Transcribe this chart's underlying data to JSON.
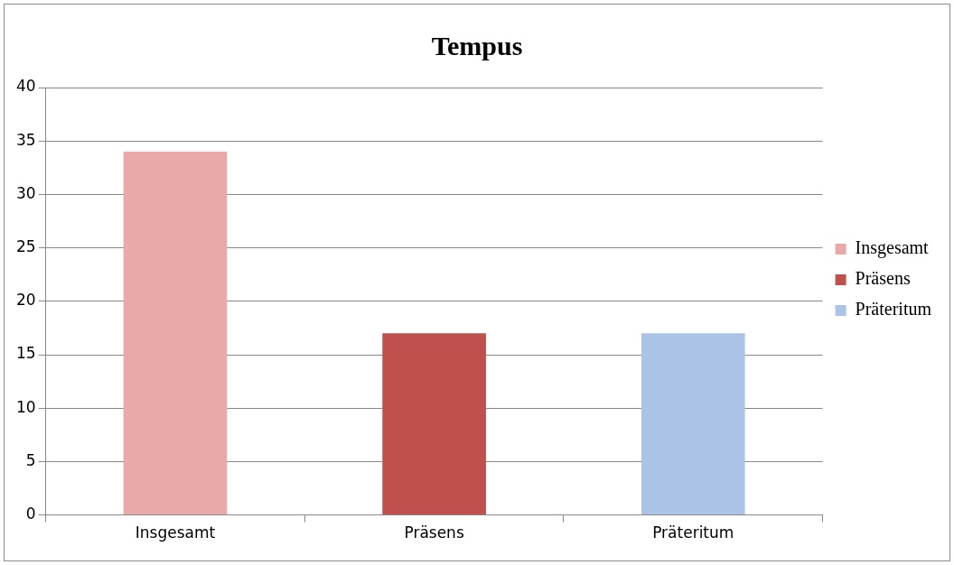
{
  "chart_data": {
    "type": "bar",
    "title": "Tempus",
    "categories": [
      "Insgesamt",
      "Präsens",
      "Präteritum"
    ],
    "series": [
      {
        "name": "Insgesamt",
        "color": "#e8a9a8",
        "values": [
          34,
          null,
          null
        ]
      },
      {
        "name": "Präsens",
        "color": "#c0504d",
        "values": [
          null,
          17,
          null
        ]
      },
      {
        "name": "Präteritum",
        "color": "#aac3e6",
        "values": [
          null,
          null,
          17
        ]
      }
    ],
    "ylim": [
      0,
      40
    ],
    "yticks": [
      0,
      5,
      10,
      15,
      20,
      25,
      30,
      35,
      40
    ],
    "grid": "y",
    "legend": "right"
  }
}
